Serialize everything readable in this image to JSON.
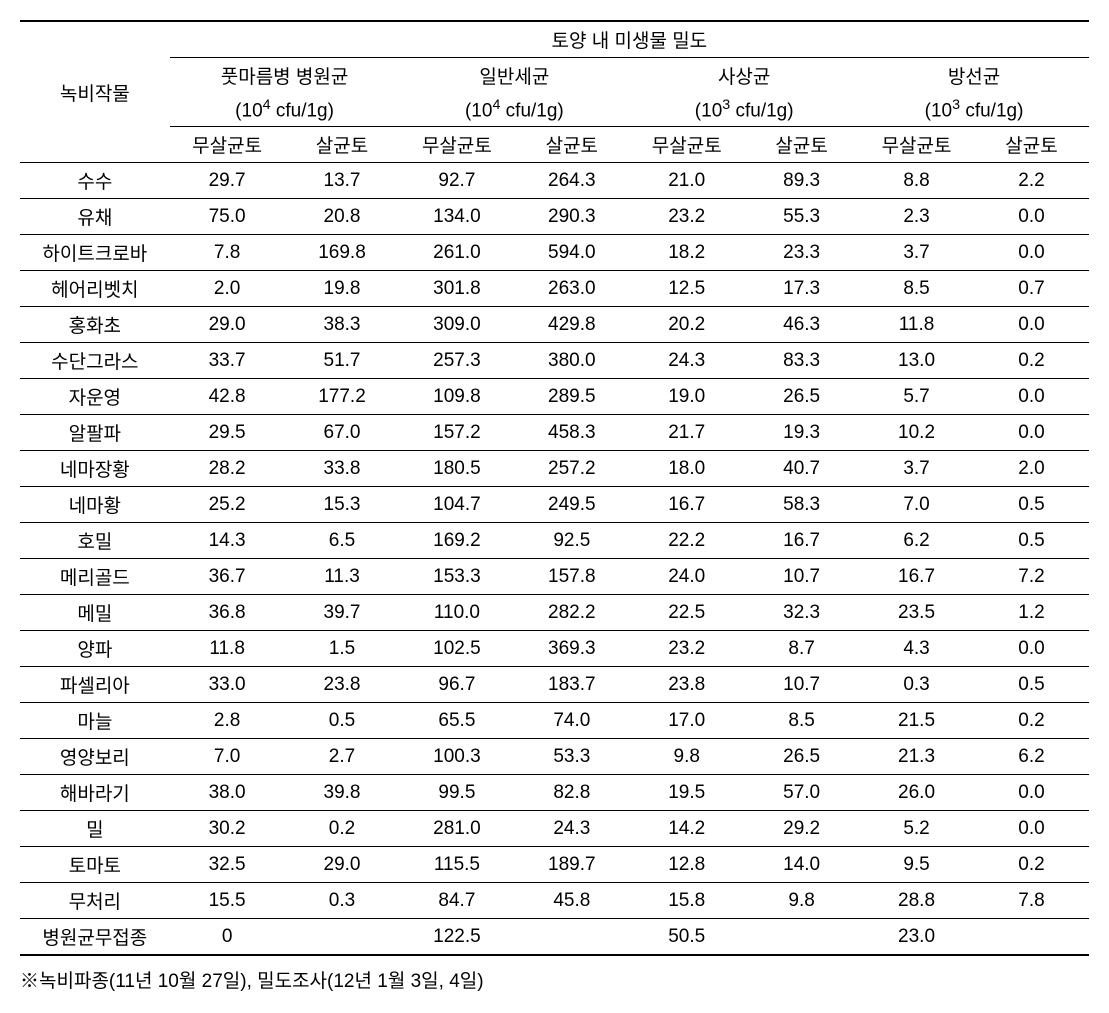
{
  "header": {
    "rowLabel": "녹비작물",
    "mainHeader": "토양 내 미생물 밀도",
    "groups": [
      {
        "name": "풋마름병 병원균",
        "unit_prefix": "(10",
        "unit_sup": "4",
        "unit_suffix": " cfu/1g)"
      },
      {
        "name": "일반세균",
        "unit_prefix": "(10",
        "unit_sup": "4",
        "unit_suffix": " cfu/1g)"
      },
      {
        "name": "사상균",
        "unit_prefix": "(10",
        "unit_sup": "3",
        "unit_suffix": " cfu/1g)"
      },
      {
        "name": "방선균",
        "unit_prefix": "(10",
        "unit_sup": "3",
        "unit_suffix": " cfu/1g)"
      }
    ],
    "sub1": "무살균토",
    "sub2": "살균토"
  },
  "rows": [
    {
      "name": "수수",
      "v": [
        "29.7",
        "13.7",
        "92.7",
        "264.3",
        "21.0",
        "89.3",
        "8.8",
        "2.2"
      ]
    },
    {
      "name": "유채",
      "v": [
        "75.0",
        "20.8",
        "134.0",
        "290.3",
        "23.2",
        "55.3",
        "2.3",
        "0.0"
      ]
    },
    {
      "name": "하이트크로바",
      "v": [
        "7.8",
        "169.8",
        "261.0",
        "594.0",
        "18.2",
        "23.3",
        "3.7",
        "0.0"
      ]
    },
    {
      "name": "헤어리벳치",
      "v": [
        "2.0",
        "19.8",
        "301.8",
        "263.0",
        "12.5",
        "17.3",
        "8.5",
        "0.7"
      ]
    },
    {
      "name": "홍화초",
      "v": [
        "29.0",
        "38.3",
        "309.0",
        "429.8",
        "20.2",
        "46.3",
        "11.8",
        "0.0"
      ]
    },
    {
      "name": "수단그라스",
      "v": [
        "33.7",
        "51.7",
        "257.3",
        "380.0",
        "24.3",
        "83.3",
        "13.0",
        "0.2"
      ]
    },
    {
      "name": "자운영",
      "v": [
        "42.8",
        "177.2",
        "109.8",
        "289.5",
        "19.0",
        "26.5",
        "5.7",
        "0.0"
      ]
    },
    {
      "name": "알팔파",
      "v": [
        "29.5",
        "67.0",
        "157.2",
        "458.3",
        "21.7",
        "19.3",
        "10.2",
        "0.0"
      ]
    },
    {
      "name": "네마장황",
      "v": [
        "28.2",
        "33.8",
        "180.5",
        "257.2",
        "18.0",
        "40.7",
        "3.7",
        "2.0"
      ]
    },
    {
      "name": "네마황",
      "v": [
        "25.2",
        "15.3",
        "104.7",
        "249.5",
        "16.7",
        "58.3",
        "7.0",
        "0.5"
      ]
    },
    {
      "name": "호밀",
      "v": [
        "14.3",
        "6.5",
        "169.2",
        "92.5",
        "22.2",
        "16.7",
        "6.2",
        "0.5"
      ]
    },
    {
      "name": "메리골드",
      "v": [
        "36.7",
        "11.3",
        "153.3",
        "157.8",
        "24.0",
        "10.7",
        "16.7",
        "7.2"
      ]
    },
    {
      "name": "메밀",
      "v": [
        "36.8",
        "39.7",
        "110.0",
        "282.2",
        "22.5",
        "32.3",
        "23.5",
        "1.2"
      ]
    },
    {
      "name": "양파",
      "v": [
        "11.8",
        "1.5",
        "102.5",
        "369.3",
        "23.2",
        "8.7",
        "4.3",
        "0.0"
      ]
    },
    {
      "name": "파셀리아",
      "v": [
        "33.0",
        "23.8",
        "96.7",
        "183.7",
        "23.8",
        "10.7",
        "0.3",
        "0.5"
      ]
    },
    {
      "name": "마늘",
      "v": [
        "2.8",
        "0.5",
        "65.5",
        "74.0",
        "17.0",
        "8.5",
        "21.5",
        "0.2"
      ]
    },
    {
      "name": "영양보리",
      "v": [
        "7.0",
        "2.7",
        "100.3",
        "53.3",
        "9.8",
        "26.5",
        "21.3",
        "6.2"
      ]
    },
    {
      "name": "해바라기",
      "v": [
        "38.0",
        "39.8",
        "99.5",
        "82.8",
        "19.5",
        "57.0",
        "26.0",
        "0.0"
      ]
    },
    {
      "name": "밀",
      "v": [
        "30.2",
        "0.2",
        "281.0",
        "24.3",
        "14.2",
        "29.2",
        "5.2",
        "0.0"
      ]
    },
    {
      "name": "토마토",
      "v": [
        "32.5",
        "29.0",
        "115.5",
        "189.7",
        "12.8",
        "14.0",
        "9.5",
        "0.2"
      ]
    },
    {
      "name": "무처리",
      "v": [
        "15.5",
        "0.3",
        "84.7",
        "45.8",
        "15.8",
        "9.8",
        "28.8",
        "7.8"
      ]
    },
    {
      "name": "병원균무접종",
      "v": [
        "0",
        "",
        "122.5",
        "",
        "50.5",
        "",
        "23.0",
        ""
      ]
    }
  ],
  "footnote": "※녹비파종(11년 10월 27일), 밀도조사(12년 1월 3일, 4일)"
}
